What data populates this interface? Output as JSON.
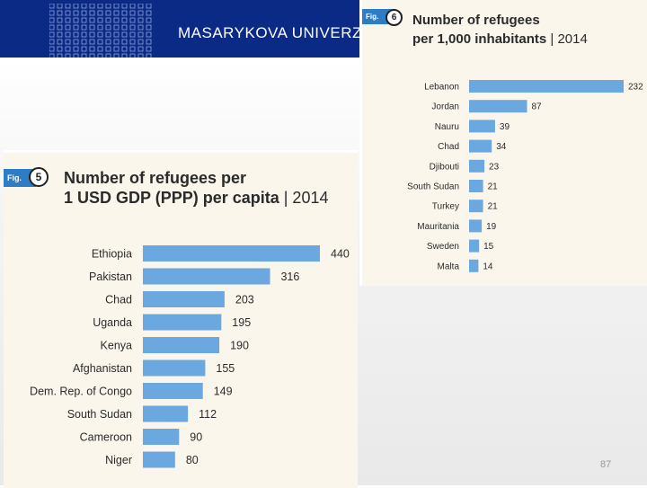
{
  "banner": {
    "title": "MASARYKOVA UNIVERZ",
    "background_color": "#0b2a86"
  },
  "page_number": "87",
  "fig5": {
    "fig_label": "Fig.",
    "fig_number": "5",
    "title_line1": "Number of refugees per",
    "title_line2_bold": "1 USD GDP (PPP) per capita",
    "title_line2_tail": " | 2014"
  },
  "fig6": {
    "fig_label": "Fig.",
    "fig_number": "6",
    "title_line1": "Number of refugees",
    "title_line2_bold": "per 1,000 inhabitants",
    "title_line2_tail": " | 2014"
  },
  "chart_data": [
    {
      "type": "bar",
      "orientation": "horizontal",
      "title": "Number of refugees per 1 USD GDP (PPP) per capita | 2014",
      "categories": [
        "Ethiopia",
        "Pakistan",
        "Chad",
        "Uganda",
        "Kenya",
        "Afghanistan",
        "Dem. Rep. of Congo",
        "South Sudan",
        "Cameroon",
        "Niger"
      ],
      "values": [
        440,
        316,
        203,
        195,
        190,
        155,
        149,
        112,
        90,
        80
      ],
      "xlim": [
        0,
        440
      ],
      "bar_color": "#6aa8df",
      "grid": false,
      "legend": "none"
    },
    {
      "type": "bar",
      "orientation": "horizontal",
      "title": "Number of refugees per 1,000 inhabitants | 2014",
      "categories": [
        "Lebanon",
        "Jordan",
        "Nauru",
        "Chad",
        "Djibouti",
        "South Sudan",
        "Turkey",
        "Mauritania",
        "Sweden",
        "Malta"
      ],
      "values": [
        232,
        87,
        39,
        34,
        23,
        21,
        21,
        19,
        15,
        14
      ],
      "xlim": [
        0,
        232
      ],
      "bar_color": "#6aa8df",
      "grid": false,
      "legend": "none"
    }
  ]
}
